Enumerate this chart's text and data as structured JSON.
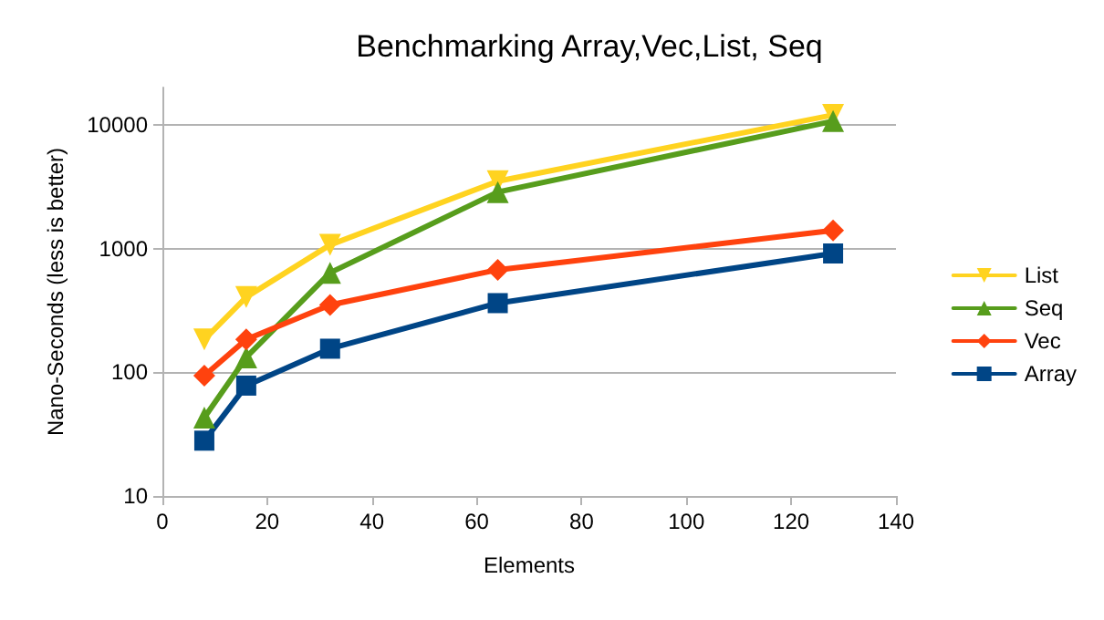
{
  "chart_data": {
    "type": "line",
    "title": "Benchmarking Array,Vec,List, Seq",
    "xlabel": "Elements",
    "ylabel": "Nano-Seconds (less is better)",
    "x": [
      8,
      16,
      32,
      64,
      128
    ],
    "series": [
      {
        "name": "List",
        "color": "#ffd320",
        "marker": "triangle-down",
        "values": [
          184,
          405,
          1070,
          3500,
          12000
        ]
      },
      {
        "name": "Seq",
        "color": "#579d1c",
        "marker": "triangle",
        "values": [
          43,
          132,
          637,
          2860,
          10700
        ]
      },
      {
        "name": "Vec",
        "color": "#ff420e",
        "marker": "diamond",
        "values": [
          94,
          184,
          350,
          673,
          1400
        ]
      },
      {
        "name": "Array",
        "color": "#004586",
        "marker": "square",
        "values": [
          28,
          78,
          155,
          362,
          912
        ]
      }
    ],
    "xlim": [
      0,
      140
    ],
    "xticks": [
      0,
      20,
      40,
      60,
      80,
      100,
      120,
      140
    ],
    "ylim": [
      10,
      20000
    ],
    "yticks": [
      10,
      100,
      1000,
      10000
    ],
    "log": "y",
    "grid": "y",
    "legend": "right"
  }
}
